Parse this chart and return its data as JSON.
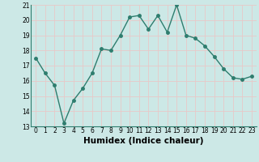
{
  "x": [
    0,
    1,
    2,
    3,
    4,
    5,
    6,
    7,
    8,
    9,
    10,
    11,
    12,
    13,
    14,
    15,
    16,
    17,
    18,
    19,
    20,
    21,
    22,
    23
  ],
  "y": [
    17.5,
    16.5,
    15.7,
    13.2,
    14.7,
    15.5,
    16.5,
    18.1,
    18.0,
    19.0,
    20.2,
    20.3,
    19.4,
    20.3,
    19.2,
    21.0,
    19.0,
    18.8,
    18.3,
    17.6,
    16.8,
    16.2,
    16.1,
    16.3
  ],
  "line_color": "#2e7d6e",
  "marker_color": "#2e7d6e",
  "bg_color": "#cce8e6",
  "grid_color": "#e8c8c8",
  "xlabel": "Humidex (Indice chaleur)",
  "ylim": [
    13,
    21
  ],
  "xlim_min": -0.5,
  "xlim_max": 23.5,
  "yticks": [
    13,
    14,
    15,
    16,
    17,
    18,
    19,
    20,
    21
  ],
  "xticks": [
    0,
    1,
    2,
    3,
    4,
    5,
    6,
    7,
    8,
    9,
    10,
    11,
    12,
    13,
    14,
    15,
    16,
    17,
    18,
    19,
    20,
    21,
    22,
    23
  ],
  "tick_labelsize": 5.5,
  "xlabel_fontsize": 7.5,
  "line_width": 1.0,
  "marker_size": 2.5
}
